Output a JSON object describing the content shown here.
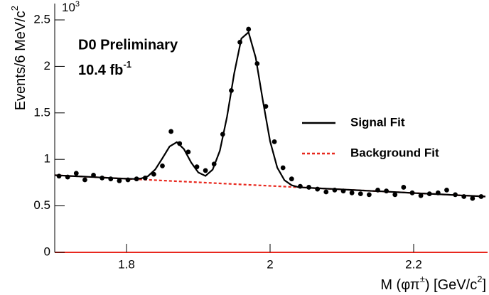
{
  "chart_data": {
    "type": "line",
    "exponent_label": {
      "base": "10",
      "exp": "3"
    },
    "y_label": {
      "text": "Events/6 MeV/c",
      "sup": "2"
    },
    "x_label": {
      "text": "M (φπ",
      "sup": "±",
      "after": ") [GeV/c",
      "sup2": "2",
      "end": "]"
    },
    "annotations": [
      {
        "text": "D0 Preliminary"
      },
      {
        "text": "10.4 fb",
        "sup": "-1"
      }
    ],
    "xlim": [
      1.7,
      2.3
    ],
    "ylim": [
      0,
      2.5
    ],
    "xticks": [
      1.8,
      2,
      2.2
    ],
    "yticks": [
      0,
      0.5,
      1,
      1.5,
      2,
      2.5
    ],
    "series": [
      {
        "type": "scatter",
        "color": "#000000",
        "x": [
          1.706,
          1.718,
          1.73,
          1.742,
          1.754,
          1.766,
          1.778,
          1.79,
          1.802,
          1.814,
          1.826,
          1.838,
          1.85,
          1.862,
          1.874,
          1.886,
          1.898,
          1.91,
          1.922,
          1.934,
          1.946,
          1.958,
          1.97,
          1.982,
          1.994,
          2.006,
          2.018,
          2.03,
          2.042,
          2.054,
          2.066,
          2.078,
          2.09,
          2.102,
          2.114,
          2.126,
          2.138,
          2.15,
          2.162,
          2.174,
          2.186,
          2.198,
          2.21,
          2.222,
          2.234,
          2.246,
          2.258,
          2.27,
          2.282,
          2.294
        ],
        "values": [
          0.82,
          0.81,
          0.85,
          0.78,
          0.83,
          0.8,
          0.79,
          0.77,
          0.78,
          0.79,
          0.8,
          0.84,
          0.93,
          1.3,
          1.17,
          1.08,
          0.92,
          0.88,
          0.95,
          1.27,
          1.74,
          2.26,
          2.4,
          2.03,
          1.57,
          1.19,
          0.91,
          0.79,
          0.71,
          0.7,
          0.68,
          0.65,
          0.67,
          0.66,
          0.64,
          0.63,
          0.62,
          0.67,
          0.66,
          0.62,
          0.7,
          0.64,
          0.61,
          0.63,
          0.64,
          0.67,
          0.62,
          0.6,
          0.58,
          0.6
        ]
      },
      {
        "name": "Background Fit",
        "color": "#e8281e",
        "dashed": true,
        "x": [
          1.7,
          2.3
        ],
        "values": [
          0.83,
          0.6
        ]
      },
      {
        "name": "Signal Fit",
        "color": "#000000",
        "x": [
          1.7,
          1.71,
          1.72,
          1.73,
          1.74,
          1.75,
          1.76,
          1.77,
          1.78,
          1.79,
          1.8,
          1.81,
          1.82,
          1.83,
          1.84,
          1.85,
          1.86,
          1.87,
          1.88,
          1.89,
          1.9,
          1.91,
          1.92,
          1.93,
          1.94,
          1.95,
          1.96,
          1.97,
          1.98,
          1.99,
          2,
          2.01,
          2.02,
          2.03,
          2.04,
          2.05,
          2.06,
          2.07,
          2.08,
          2.09,
          2.1,
          2.11,
          2.12,
          2.13,
          2.14,
          2.15,
          2.16,
          2.17,
          2.18,
          2.19,
          2.2,
          2.21,
          2.22,
          2.23,
          2.24,
          2.25,
          2.26,
          2.27,
          2.28,
          2.29,
          2.3
        ],
        "values": [
          0.83,
          0.826,
          0.822,
          0.818,
          0.815,
          0.811,
          0.807,
          0.803,
          0.799,
          0.795,
          0.792,
          0.79,
          0.794,
          0.82,
          0.891,
          1.012,
          1.139,
          1.185,
          1.111,
          0.967,
          0.859,
          0.822,
          0.89,
          1.092,
          1.458,
          1.924,
          2.3,
          2.367,
          2.093,
          1.629,
          1.195,
          0.911,
          0.776,
          0.722,
          0.7,
          0.696,
          0.692,
          0.688,
          0.684,
          0.681,
          0.677,
          0.673,
          0.669,
          0.665,
          0.661,
          0.658,
          0.654,
          0.65,
          0.646,
          0.642,
          0.638,
          0.634,
          0.631,
          0.627,
          0.623,
          0.619,
          0.615,
          0.611,
          0.608,
          0.604,
          0.6
        ]
      }
    ]
  }
}
